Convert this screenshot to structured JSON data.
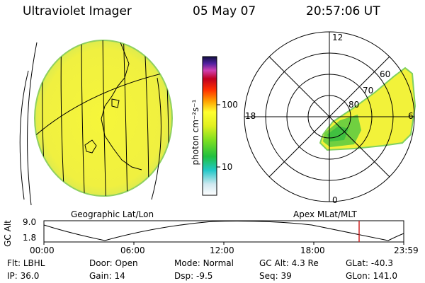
{
  "header": {
    "title": "Ultraviolet Imager",
    "date": "05 May 07",
    "time": "20:57:06 UT"
  },
  "colorbar": {
    "unit_label": "photon cm⁻²s⁻¹",
    "ticks": [
      "100",
      "10"
    ]
  },
  "geo_panel": {
    "label": "Geographic Lat/Lon"
  },
  "polar_panel": {
    "label": "Apex MLat/MLT",
    "mlt_labels": {
      "top": "12",
      "left": "18",
      "right": "6",
      "bottom": "0"
    },
    "lat_labels": [
      "60",
      "70",
      "80"
    ]
  },
  "altitude_plot": {
    "ylabel": "GC Alt",
    "yticks": [
      "9.0",
      "1.8"
    ],
    "xticks": [
      "00:00",
      "06:00",
      "12:00",
      "18:00",
      "23:59"
    ],
    "current_marker_color": "#cc2222"
  },
  "footer": {
    "row1": [
      {
        "label": "Flt:",
        "value": "LBHL"
      },
      {
        "label": "Door:",
        "value": "Open"
      },
      {
        "label": "Mode:",
        "value": "Normal"
      },
      {
        "label": "GC Alt:",
        "value": "4.3 Re"
      },
      {
        "label": "GLat:",
        "value": "-40.3"
      }
    ],
    "row2": [
      {
        "label": "IP:",
        "value": "36.0"
      },
      {
        "label": "Gain:",
        "value": "14"
      },
      {
        "label": "Dsp:",
        "value": "-9.5"
      },
      {
        "label": "Seq:",
        "value": "39"
      },
      {
        "label": "GLon:",
        "value": "141.0"
      }
    ]
  }
}
